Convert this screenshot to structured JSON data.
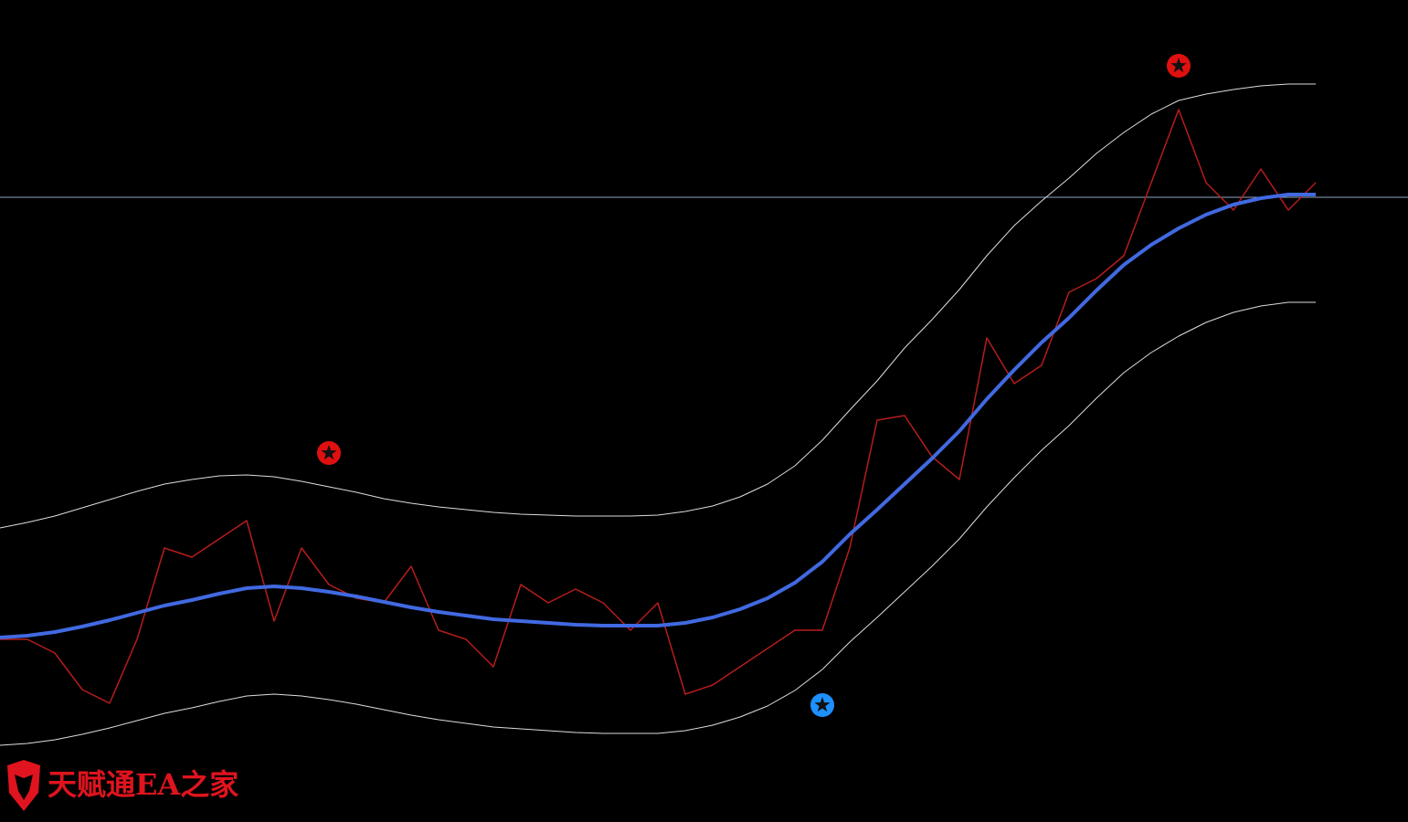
{
  "chart_data": {
    "type": "line",
    "background": "#000000",
    "ylim": [
      0,
      900
    ],
    "hline": {
      "value": 684,
      "color": "#8fa3bf"
    },
    "series": [
      {
        "color": "#dddddd",
        "width": 1,
        "values": [
          322,
          328,
          335,
          344,
          353,
          362,
          370,
          375,
          379,
          380,
          378,
          373,
          367,
          361,
          354,
          349,
          345,
          342,
          339,
          337,
          336,
          335,
          335,
          335,
          336,
          340,
          346,
          356,
          370,
          390,
          418,
          451,
          483,
          519,
          550,
          583,
          620,
          653,
          680,
          705,
          732,
          755,
          775,
          790,
          797,
          802,
          806,
          808,
          808
        ]
      },
      {
        "color": "#dddddd",
        "width": 1,
        "values": [
          84,
          86,
          90,
          96,
          103,
          111,
          119,
          125,
          132,
          138,
          140,
          138,
          134,
          129,
          123,
          117,
          112,
          108,
          104,
          102,
          100,
          98,
          97,
          97,
          97,
          100,
          106,
          115,
          127,
          144,
          167,
          197,
          224,
          252,
          280,
          310,
          345,
          377,
          407,
          434,
          464,
          492,
          514,
          532,
          547,
          558,
          565,
          569,
          569
        ]
      },
      {
        "color": "#b71c1c",
        "width": 1.5,
        "values": [
          200,
          200,
          185,
          145,
          130,
          200,
          300,
          290,
          310,
          330,
          220,
          300,
          260,
          245,
          240,
          280,
          210,
          200,
          170,
          260,
          240,
          255,
          240,
          210,
          240,
          140,
          150,
          170,
          190,
          210,
          210,
          300,
          440,
          445,
          400,
          375,
          530,
          480,
          500,
          580,
          595,
          620,
          700,
          780,
          700,
          670,
          715,
          670,
          700
        ]
      },
      {
        "color": "#4169e1",
        "width": 4,
        "values": [
          202,
          204,
          208,
          214,
          221,
          229,
          237,
          243,
          250,
          256,
          258,
          256,
          252,
          247,
          241,
          235,
          230,
          226,
          222,
          220,
          218,
          216,
          215,
          215,
          215,
          218,
          224,
          233,
          245,
          262,
          285,
          315,
          342,
          370,
          398,
          428,
          463,
          495,
          525,
          552,
          582,
          610,
          632,
          650,
          665,
          676,
          683,
          687,
          687
        ]
      }
    ],
    "signals": [
      {
        "index": 12,
        "value": 404,
        "color": "#e01010"
      },
      {
        "index": 30,
        "value": 128,
        "color": "#1e90ff"
      },
      {
        "index": 43,
        "value": 828,
        "color": "#e01010"
      }
    ],
    "watermark": "天赋通EA之家"
  }
}
